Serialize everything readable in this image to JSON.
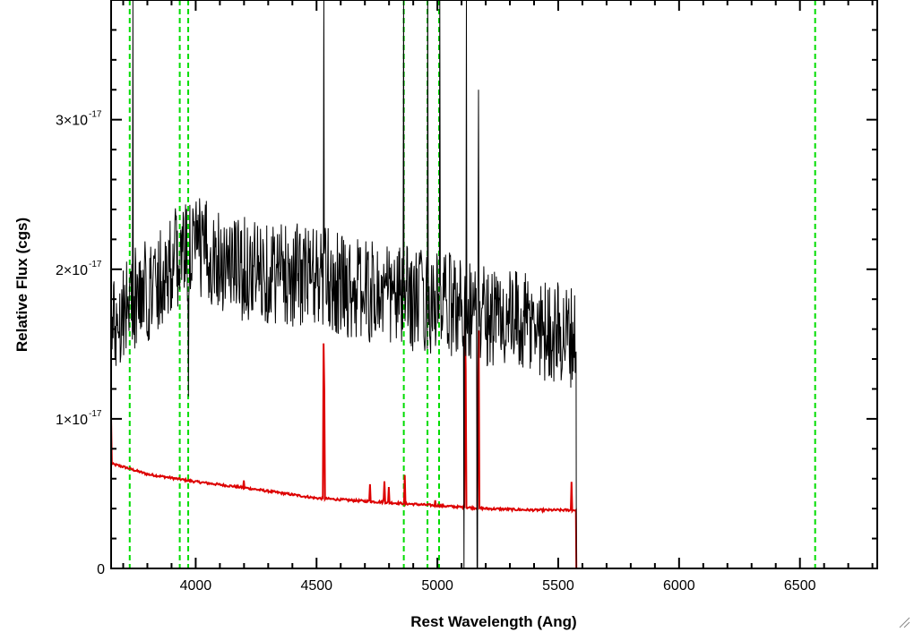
{
  "chart_data": {
    "type": "line",
    "title": "",
    "xlabel": "Rest Wavelength (Ang)",
    "ylabel": "Relative Flux (cgs)",
    "xlim": [
      3650,
      6820
    ],
    "ylim": [
      0,
      3.8e-17
    ],
    "x_ticks": [
      4000,
      4500,
      5000,
      5500,
      6000,
      6500
    ],
    "x_tick_labels": [
      "4000",
      "4500",
      "5000",
      "5500",
      "6000",
      "6500"
    ],
    "y_ticks": [
      {
        "value": 0,
        "label": "0",
        "mantissa": "",
        "exponent": ""
      },
      {
        "value": 1e-17,
        "label": "1×10-17",
        "mantissa": "1×10",
        "exponent": "-17"
      },
      {
        "value": 2e-17,
        "label": "2×10-17",
        "mantissa": "2×10",
        "exponent": "-17"
      },
      {
        "value": 3e-17,
        "label": "3×10-17",
        "mantissa": "3×10",
        "exponent": "-17"
      }
    ],
    "grid": false,
    "vertical_lines": {
      "color": "#00dd00",
      "style": "dashed",
      "x": [
        3727,
        3934,
        3969,
        4861,
        4959,
        5007,
        6563
      ]
    },
    "series": [
      {
        "color": "#000000",
        "x_start": 3650,
        "x_end": 5575,
        "continuum_points": [
          [
            3650,
            1.6e-17
          ],
          [
            3700,
            1.75e-17
          ],
          [
            3800,
            1.85e-17
          ],
          [
            3900,
            2.05e-17
          ],
          [
            4000,
            2.15e-17
          ],
          [
            4200,
            2e-17
          ],
          [
            4500,
            1.95e-17
          ],
          [
            4700,
            1.85e-17
          ],
          [
            4900,
            1.8e-17
          ],
          [
            5100,
            1.75e-17
          ],
          [
            5300,
            1.65e-17
          ],
          [
            5575,
            1.55e-17
          ]
        ],
        "noise_amplitude": 3.5e-18,
        "spikes": [
          {
            "x": 3740,
            "y": 3.8e-17
          },
          {
            "x": 3970,
            "y": 1.15e-17
          },
          {
            "x": 4530,
            "y": 3.8e-17
          },
          {
            "x": 4860,
            "y": 3.8e-17
          },
          {
            "x": 4960,
            "y": 3.8e-17
          },
          {
            "x": 5010,
            "y": 3.8e-17
          },
          {
            "x": 5110,
            "y": 0.0
          },
          {
            "x": 5120,
            "y": 3.8e-17
          },
          {
            "x": 5165,
            "y": 0.0
          },
          {
            "x": 5170,
            "y": 3.2e-17
          }
        ],
        "after_end_value": 0
      },
      {
        "color": "#dd0000",
        "x_start": 3650,
        "x_end": 6820,
        "error_points": [
          [
            3650,
            7e-18
          ],
          [
            3700,
            6.8e-18
          ],
          [
            3800,
            6.3e-18
          ],
          [
            4000,
            5.8e-18
          ],
          [
            4200,
            5.4e-18
          ],
          [
            4500,
            4.7e-18
          ],
          [
            4800,
            4.4e-18
          ],
          [
            5000,
            4.2e-18
          ],
          [
            5200,
            4e-18
          ],
          [
            5400,
            3.9e-18
          ],
          [
            5570,
            3.9e-18
          ]
        ],
        "sky_lines": [
          {
            "x": 3650,
            "y": 1e-17
          },
          {
            "x": 3735,
            "y": 7.5e-18
          },
          {
            "x": 4200,
            "y": 7e-18
          },
          {
            "x": 4530,
            "y": 1.8e-17
          },
          {
            "x": 4720,
            "y": 6.8e-18
          },
          {
            "x": 4780,
            "y": 7e-18
          },
          {
            "x": 4800,
            "y": 6.5e-18
          },
          {
            "x": 4865,
            "y": 6.2e-18
          },
          {
            "x": 4990,
            "y": 5.4e-18
          },
          {
            "x": 5115,
            "y": 2e-17
          },
          {
            "x": 5170,
            "y": 1.9e-17
          },
          {
            "x": 5555,
            "y": 5.8e-18
          }
        ],
        "zero_after": 5575
      }
    ]
  }
}
